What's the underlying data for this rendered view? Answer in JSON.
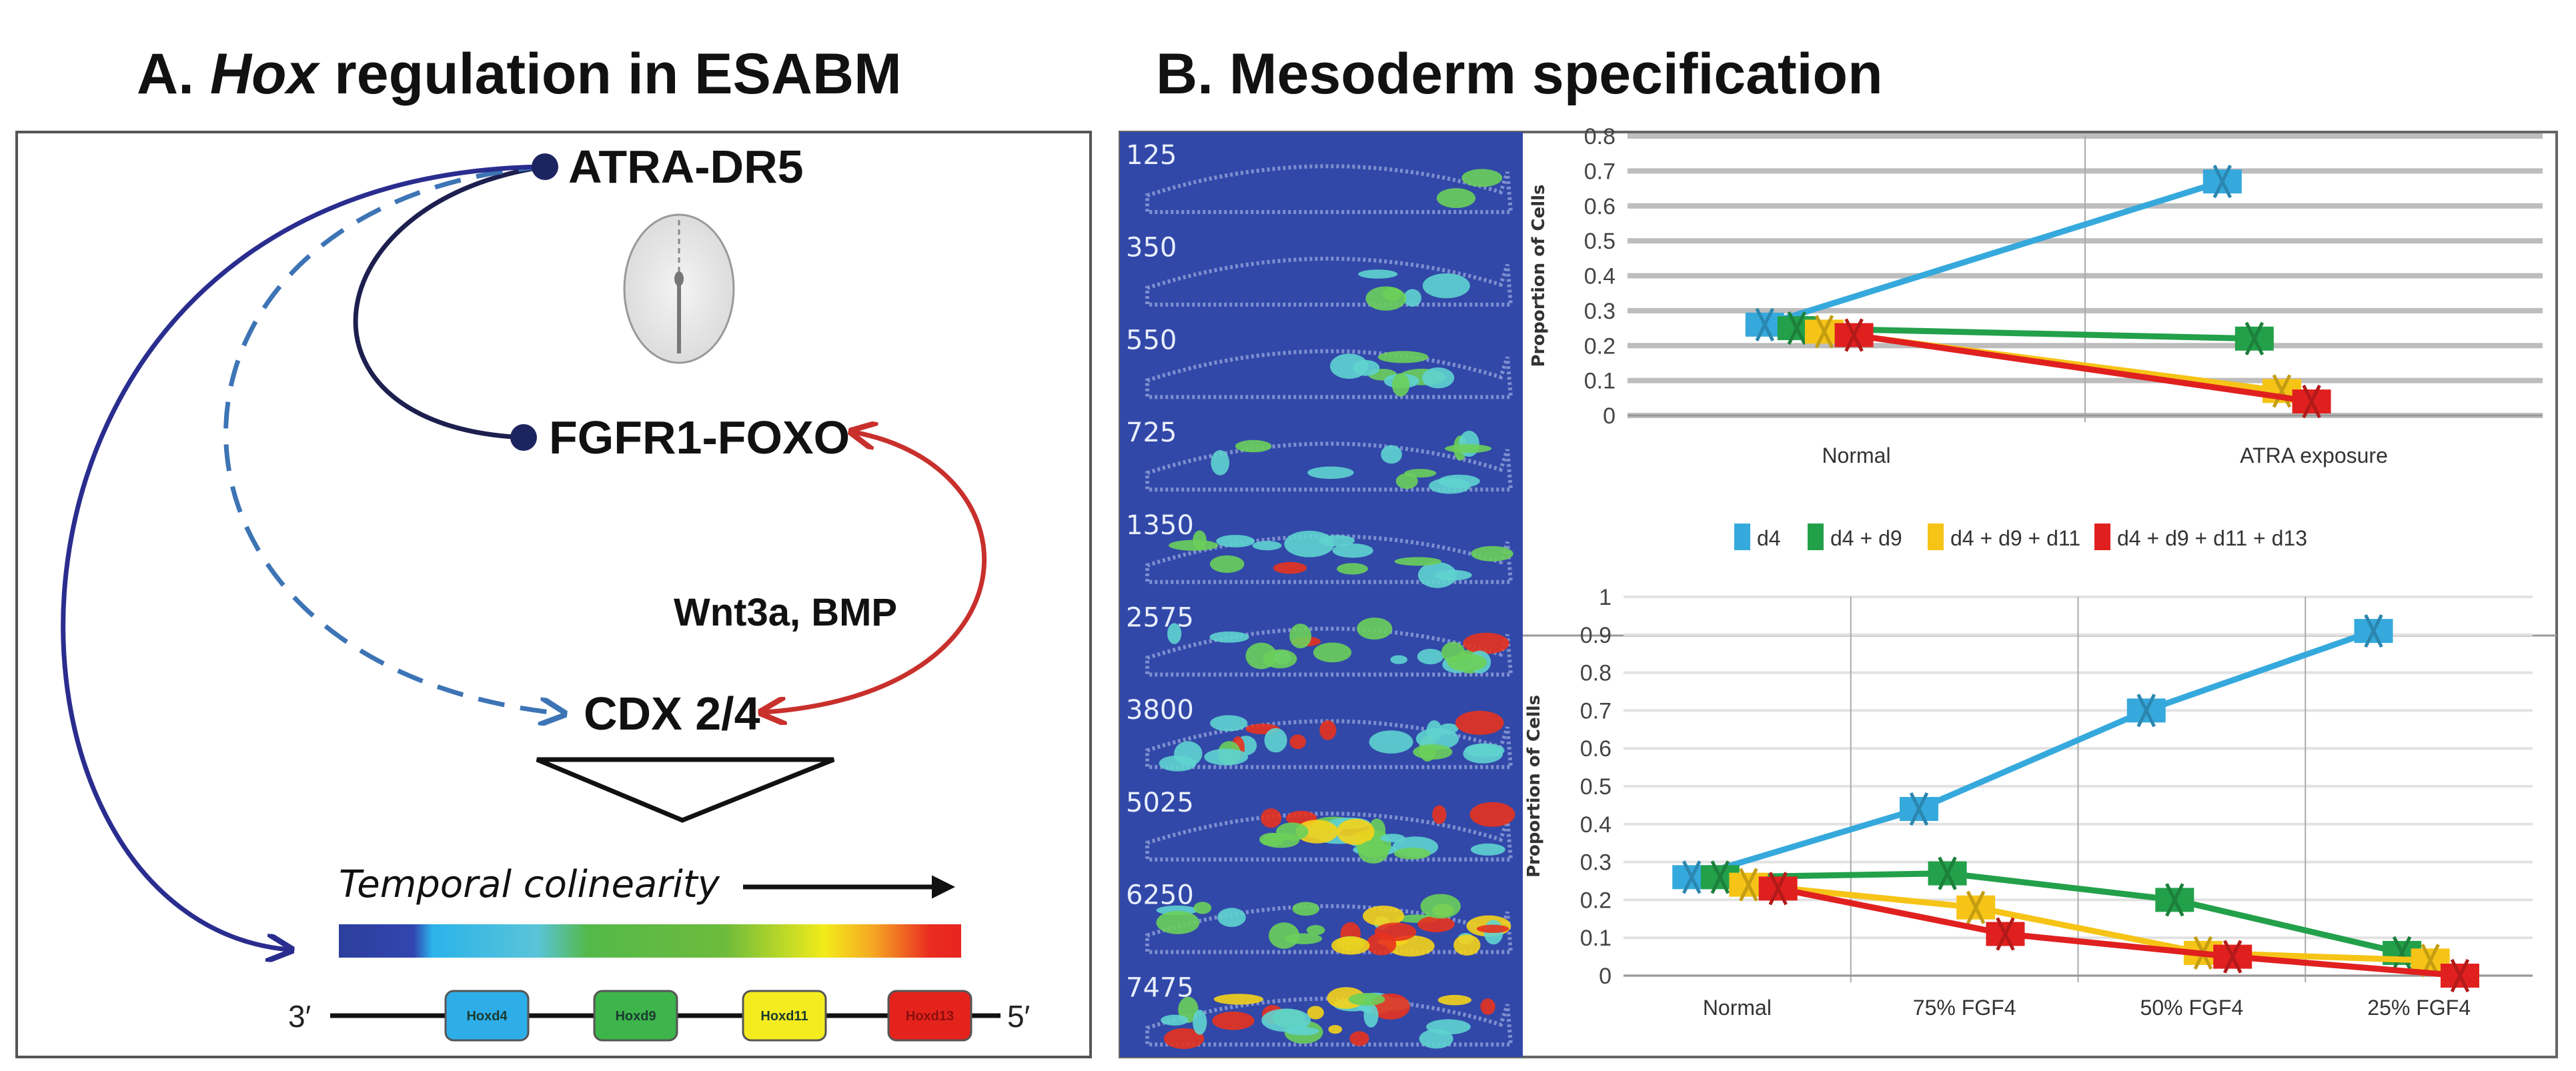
{
  "panel_a": {
    "title_prefix": "A. ",
    "title_italic": "Hox",
    "title_suffix": " regulation in ESABM",
    "nodes": {
      "atra": "ATRA-DR5",
      "fgfr1": "FGFR1-FOXO",
      "cdx": "CDX 2/4"
    },
    "signal_label": "Wnt3a, BMP",
    "temporal_label": "Temporal  colinearity",
    "gene_cluster": {
      "left_end": "3′",
      "right_end": "5′",
      "genes": [
        {
          "name": "Hoxd4",
          "color": "#2eaee8"
        },
        {
          "name": "Hoxd9",
          "color": "#3db54a"
        },
        {
          "name": "Hoxd11",
          "color": "#f4ec1f"
        },
        {
          "name": "Hoxd13",
          "color": "#e5231d"
        }
      ]
    }
  },
  "panel_b": {
    "title": "B. Mesoderm specification",
    "strip_labels": [
      "125",
      "350",
      "550",
      "725",
      "1350",
      "2575",
      "3800",
      "5025",
      "6250",
      "7475"
    ]
  },
  "chart_data": [
    {
      "type": "line",
      "title": "",
      "xlabel": "",
      "ylabel": "Proportion of Cells",
      "categories": [
        "Normal",
        "ATRA exposure"
      ],
      "ylim": [
        0,
        0.8
      ],
      "yticks": [
        "0",
        "0.1",
        "0.2",
        "0.3",
        "0.4",
        "0.5",
        "0.6",
        "0.7",
        "0.8"
      ],
      "grid": true,
      "series": [
        {
          "name": "d4",
          "color": "#36a9dc",
          "values": [
            0.26,
            0.67
          ]
        },
        {
          "name": "d4 + d9",
          "color": "#23a04a",
          "values": [
            0.25,
            0.22
          ]
        },
        {
          "name": "d4 + d9 + d11",
          "color": "#f6c417",
          "values": [
            0.24,
            0.07
          ]
        },
        {
          "name": "d4 + d9 + d11 + d13",
          "color": "#e0201f",
          "values": [
            0.23,
            0.04
          ]
        }
      ]
    },
    {
      "type": "line",
      "title": "",
      "xlabel": "",
      "ylabel": "Proportion of Cells",
      "categories": [
        "Normal",
        "75% FGF4",
        "50% FGF4",
        "25% FGF4"
      ],
      "ylim": [
        0,
        1
      ],
      "yticks": [
        "0",
        "0.1",
        "0.2",
        "0.3",
        "0.4",
        "0.5",
        "0.6",
        "0.7",
        "0.8",
        "0.9",
        "1"
      ],
      "grid": true,
      "legend": "top",
      "series": [
        {
          "name": "d4",
          "color": "#36a9dc",
          "values": [
            0.26,
            0.44,
            0.7,
            0.91
          ]
        },
        {
          "name": "d4 + d9",
          "color": "#23a04a",
          "values": [
            0.26,
            0.27,
            0.2,
            0.06
          ]
        },
        {
          "name": "d4 + d9 + d11",
          "color": "#f6c417",
          "values": [
            0.24,
            0.18,
            0.06,
            0.04
          ]
        },
        {
          "name": "d4 + d9 + d11 + d13",
          "color": "#e0201f",
          "values": [
            0.23,
            0.11,
            0.05,
            0.0
          ]
        }
      ]
    }
  ]
}
